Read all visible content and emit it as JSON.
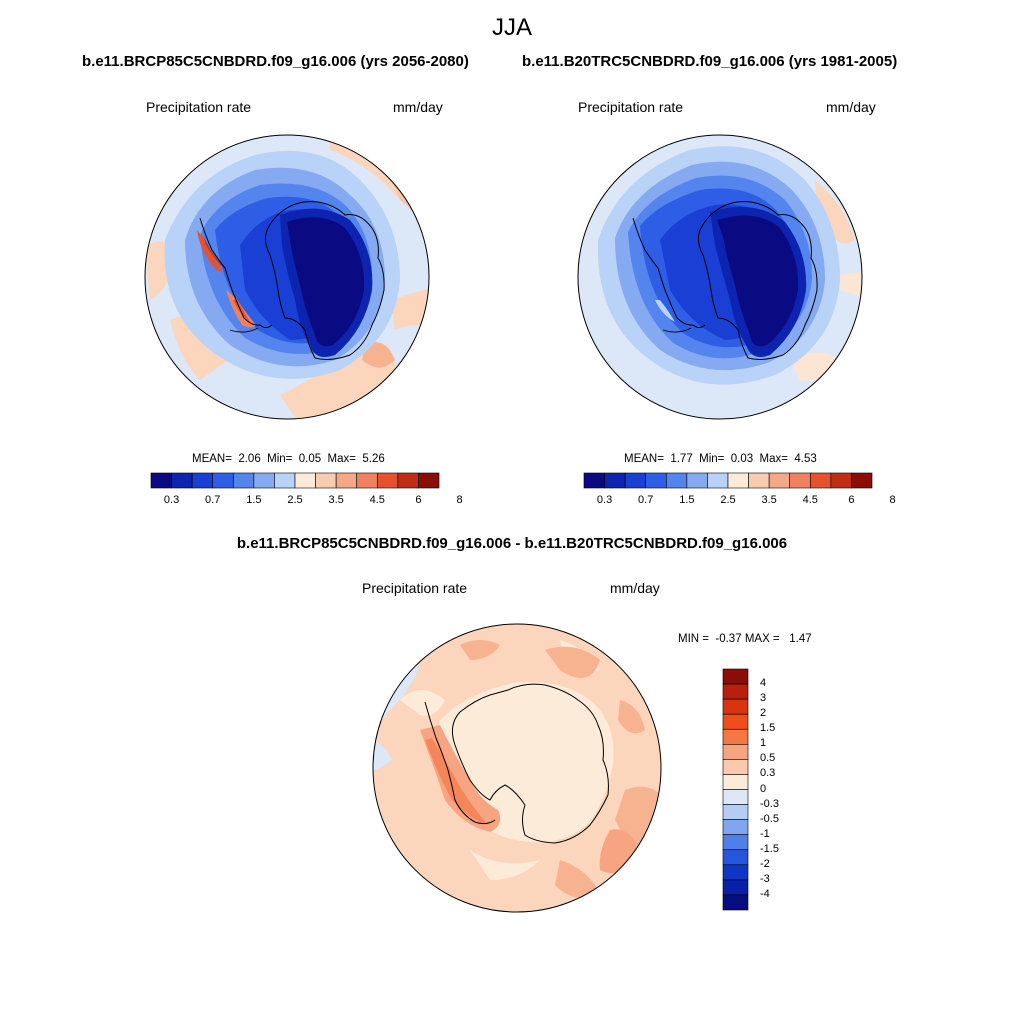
{
  "figure": {
    "title": "JJA",
    "variable": "Precipitation rate",
    "units": "mm/day"
  },
  "panels": [
    {
      "id": "future",
      "case_title": "b.e11.BRCP85C5CNBDRD.f09_g16.006 (yrs 2056-2080)",
      "variable": "Precipitation rate",
      "units": "mm/day",
      "stats": {
        "mean_label": "MEAN=",
        "mean": "2.06",
        "min_label": "Min=",
        "min": "0.05",
        "max_label": "Max=",
        "max": "5.26"
      }
    },
    {
      "id": "historical",
      "case_title": "b.e11.B20TRC5CNBDRD.f09_g16.006 (yrs 1981-2005)",
      "variable": "Precipitation rate",
      "units": "mm/day",
      "stats": {
        "mean_label": "MEAN=",
        "mean": "1.77",
        "min_label": "Min=",
        "min": "0.03",
        "max_label": "Max=",
        "max": "4.53"
      }
    },
    {
      "id": "difference",
      "case_title": "b.e11.BRCP85C5CNBDRD.f09_g16.006 - b.e11.B20TRC5CNBDRD.f09_g16.006",
      "variable": "Precipitation rate",
      "units": "mm/day",
      "stats": {
        "min_label": "MIN =",
        "min": "-0.37",
        "max_label": "MAX =",
        "max": "1.47"
      }
    }
  ],
  "colorbars": {
    "absolute": {
      "colors": [
        "#0a0a82",
        "#0d24b0",
        "#1a3fd4",
        "#2f5ee6",
        "#5484ee",
        "#85aaf2",
        "#b9d2f7",
        "#fdebd9",
        "#f9cbb0",
        "#f5a889",
        "#f0805f",
        "#e4522f",
        "#c22d15",
        "#8a0d06"
      ],
      "ticks": [
        "0.3",
        "0.7",
        "1.5",
        "2.5",
        "3.5",
        "4.5",
        "6",
        "8"
      ]
    },
    "difference": {
      "colors": [
        "#8a0d06",
        "#b81f0c",
        "#d9330f",
        "#f04d1c",
        "#f57743",
        "#f7a581",
        "#fbc9ac",
        "#fdebd9",
        "#dce8f8",
        "#b3cdf4",
        "#7fa6ee",
        "#4f7fe8",
        "#2656db",
        "#0f36c4",
        "#0920a5",
        "#050d80"
      ],
      "ticks": [
        "4",
        "3",
        "2",
        "1.5",
        "1",
        "0.5",
        "0.3",
        "0",
        "-0.3",
        "-0.5",
        "-1",
        "-1.5",
        "-2",
        "-3",
        "-4"
      ]
    }
  },
  "chart_data": [
    {
      "type": "heatmap",
      "title": "b.e11.BRCP85C5CNBDRD.f09_g16.006 (yrs 2056-2080)",
      "variable": "Precipitation rate (mm/day)",
      "projection": "south polar stereographic",
      "levels": [
        0.3,
        0.5,
        0.7,
        1,
        1.5,
        2,
        2.5,
        3,
        3.5,
        4,
        4.5,
        5,
        6,
        7,
        8
      ],
      "mean": 2.06,
      "min": 0.05,
      "max": 5.26
    },
    {
      "type": "heatmap",
      "title": "b.e11.B20TRC5CNBDRD.f09_g16.006 (yrs 1981-2005)",
      "variable": "Precipitation rate (mm/day)",
      "projection": "south polar stereographic",
      "levels": [
        0.3,
        0.5,
        0.7,
        1,
        1.5,
        2,
        2.5,
        3,
        3.5,
        4,
        4.5,
        5,
        6,
        7,
        8
      ],
      "mean": 1.77,
      "min": 0.03,
      "max": 4.53
    },
    {
      "type": "heatmap",
      "title": "b.e11.BRCP85C5CNBDRD.f09_g16.006 - b.e11.B20TRC5CNBDRD.f09_g16.006",
      "variable": "Precipitation rate (mm/day)",
      "projection": "south polar stereographic",
      "levels": [
        -4,
        -3,
        -2,
        -1.5,
        -1,
        -0.5,
        -0.3,
        0,
        0.3,
        0.5,
        1,
        1.5,
        2,
        3,
        4
      ],
      "min": -0.37,
      "max": 1.47
    }
  ]
}
